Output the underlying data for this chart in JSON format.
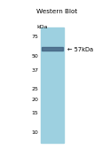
{
  "title": "Western Blot",
  "kdal_label": "kDa",
  "yticks": [
    75,
    50,
    37,
    25,
    20,
    15,
    10
  ],
  "gel_bg_color": "#9dd0e0",
  "band_color": "#3a5a7a",
  "band_alpha": 0.75,
  "arrow_label": "← 57kDa",
  "ymin": 8,
  "ymax": 90,
  "fig_bg_color": "#ffffff",
  "title_fontsize": 5.2,
  "tick_fontsize": 4.5,
  "arrow_fontsize": 4.8,
  "kda_label_fontsize": 4.5
}
